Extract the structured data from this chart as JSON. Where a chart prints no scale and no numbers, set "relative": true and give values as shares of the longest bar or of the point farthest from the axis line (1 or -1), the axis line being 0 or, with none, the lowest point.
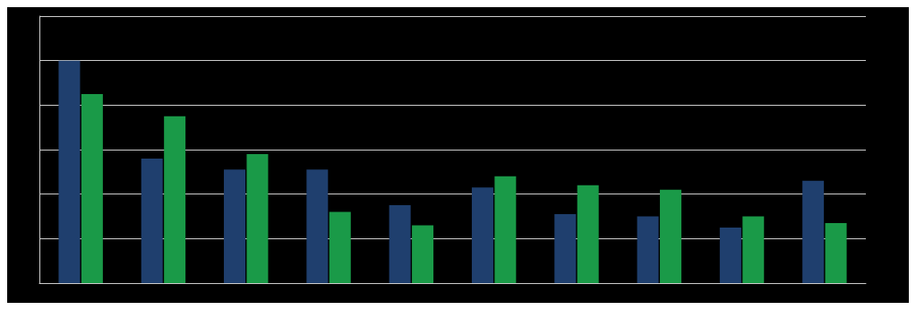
{
  "chart_data": {
    "type": "bar",
    "relative": true,
    "grid": "y",
    "categories": [
      null,
      null,
      null,
      null,
      null,
      null,
      null,
      null,
      null,
      null
    ],
    "series": [
      {
        "color": "#1f3f6e",
        "values": [
          1,
          0.56,
          0.51,
          0.51,
          0.35,
          0.43,
          0.31,
          0.3,
          0.25,
          0.46
        ]
      },
      {
        "color": "#1a9a48",
        "values": [
          0.85,
          0.75,
          0.58,
          0.32,
          0.26,
          0.48,
          0.44,
          0.42,
          0.3,
          0.27
        ]
      }
    ]
  }
}
